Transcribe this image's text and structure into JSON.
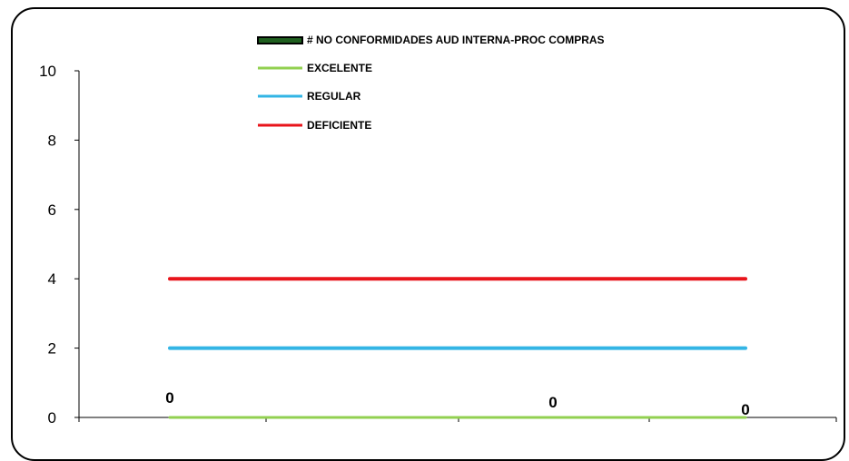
{
  "chart_data": {
    "type": "line",
    "x_count": 3,
    "ylim": [
      0,
      10
    ],
    "yticks": [
      0,
      2,
      4,
      6,
      8,
      10
    ],
    "grid": false,
    "legend_position": "top",
    "series": [
      {
        "name": "# NO CONFORMIDADES AUD INTERNA-PROC COMPRAS",
        "values": [
          0,
          0,
          0
        ],
        "color": "#1f5f1f",
        "data_labels": [
          "0",
          "0",
          "0"
        ]
      },
      {
        "name": "EXCELENTE",
        "values": [
          0,
          0,
          0
        ],
        "color": "#92d050"
      },
      {
        "name": "REGULAR",
        "values": [
          2,
          2,
          2
        ],
        "color": "#33b5e5"
      },
      {
        "name": "DEFICIENTE",
        "values": [
          4,
          4,
          4
        ],
        "color": "#e8141b"
      }
    ]
  }
}
